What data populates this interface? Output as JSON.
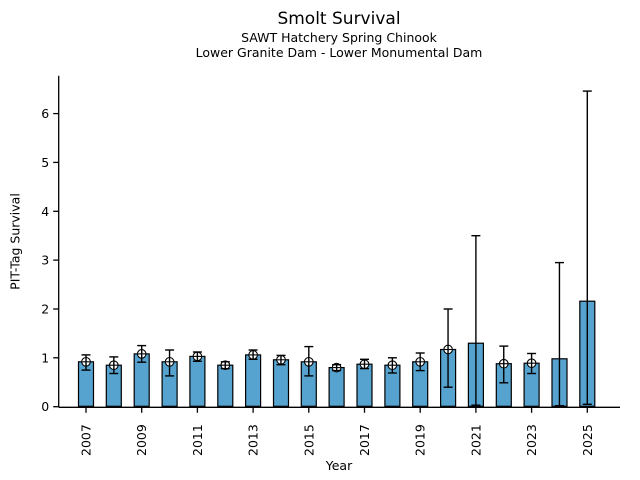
{
  "chart": {
    "title": "Smolt Survival",
    "subtitle1": "SAWT Hatchery Spring Chinook",
    "subtitle2": "Lower Granite Dam - Lower Monumental Dam",
    "xlabel": "Year",
    "ylabel": "PIT-Tag Survival"
  },
  "chart_data": {
    "type": "bar",
    "title": "Smolt Survival",
    "subtitles": [
      "SAWT Hatchery Spring Chinook",
      "Lower Granite Dam - Lower Monumental Dam"
    ],
    "xlabel": "Year",
    "ylabel": "PIT-Tag Survival",
    "ylim": [
      0,
      6.8
    ],
    "yticks": [
      0,
      1,
      2,
      3,
      4,
      5,
      6
    ],
    "xtick_labels": [
      "2007",
      "2009",
      "2011",
      "2013",
      "2015",
      "2017",
      "2019",
      "2021",
      "2023",
      "2025"
    ],
    "grid": false,
    "legend": "none",
    "bar_color": "#56a3cf",
    "bar_edge_color": "#000000",
    "error_color": "#000000",
    "marker_face_color": "#ffffff",
    "categories": [
      2007,
      2008,
      2009,
      2010,
      2011,
      2012,
      2013,
      2014,
      2015,
      2016,
      2017,
      2018,
      2019,
      2020,
      2021,
      2022,
      2023,
      2024,
      2025
    ],
    "series": [
      {
        "name": "PIT-Tag Survival",
        "values": [
          0.92,
          0.85,
          1.08,
          0.92,
          1.03,
          0.85,
          1.06,
          0.96,
          0.92,
          0.8,
          0.87,
          0.85,
          0.92,
          1.17,
          1.3,
          0.88,
          0.89,
          0.98,
          2.16
        ]
      }
    ],
    "error_low": [
      0.75,
      0.68,
      0.91,
      0.63,
      0.93,
      0.78,
      0.97,
      0.86,
      0.63,
      0.74,
      0.78,
      0.69,
      0.74,
      0.4,
      0.03,
      0.49,
      0.68,
      0.02,
      0.05
    ],
    "error_high": [
      1.06,
      1.02,
      1.25,
      1.16,
      1.12,
      0.92,
      1.16,
      1.05,
      1.23,
      0.86,
      0.97,
      1.0,
      1.1,
      2.0,
      3.5,
      1.24,
      1.09,
      2.95,
      6.46
    ],
    "point_estimates": [
      0.92,
      0.85,
      1.08,
      0.92,
      1.03,
      0.85,
      1.06,
      0.96,
      0.92,
      0.8,
      0.87,
      0.85,
      0.92,
      1.17,
      null,
      0.88,
      0.89,
      null,
      null
    ]
  }
}
